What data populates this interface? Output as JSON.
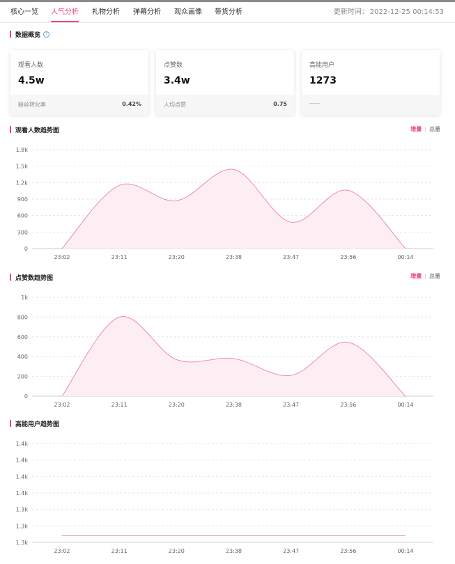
{
  "tabs": [
    {
      "label": "核心一览"
    },
    {
      "label": "人气分析",
      "active": true
    },
    {
      "label": "礼物分析"
    },
    {
      "label": "弹幕分析"
    },
    {
      "label": "观众画像"
    },
    {
      "label": "带货分析"
    }
  ],
  "update": {
    "label": "更新时间：",
    "time": "2022-12-25 00:14:53"
  },
  "overview": {
    "title": "数据概览",
    "help_icon": "question-circle-icon",
    "cards": [
      {
        "label": "观看人数",
        "value": "4.5w",
        "foot_label": "粉丝转化率",
        "foot_value": "0.42%"
      },
      {
        "label": "点赞数",
        "value": "3.4w",
        "foot_label": "人均点赞",
        "foot_value": "0.75"
      },
      {
        "label": "高能用户",
        "value": "1273",
        "foot_label": "——",
        "foot_value": ""
      }
    ]
  },
  "toggle": {
    "increment": "增量",
    "total": "总量"
  },
  "colors": {
    "accent": "#f0457a",
    "line": "#f28aa8",
    "fill": "#fdeef3",
    "grid": "#e6e6e6"
  },
  "chart_data": [
    {
      "title": "观看人数趋势图",
      "type": "area",
      "smooth": true,
      "x": [
        "23:02",
        "23:11",
        "23:20",
        "23:38",
        "23:47",
        "23:56",
        "00:14"
      ],
      "yticks": [
        "0",
        "300",
        "600",
        "900",
        "1.2k",
        "1.5k",
        "1.8k"
      ],
      "ylim": [
        0,
        1800
      ],
      "points": [
        {
          "x": "23:02",
          "y": 0
        },
        {
          "x": "23:11",
          "y": 1150
        },
        {
          "x": "23:20",
          "y": 870
        },
        {
          "x": "23:38",
          "y": 1440
        },
        {
          "x": "23:47",
          "y": 480
        },
        {
          "x": "23:56",
          "y": 1060
        },
        {
          "x": "00:14",
          "y": 0
        }
      ],
      "grid": true,
      "legend": "none"
    },
    {
      "title": "点赞数趋势图",
      "type": "area",
      "smooth": true,
      "x": [
        "23:02",
        "23:11",
        "23:20",
        "23:38",
        "23:47",
        "23:56",
        "00:14"
      ],
      "yticks": [
        "0",
        "200",
        "400",
        "600",
        "800",
        "1k"
      ],
      "ylim": [
        0,
        1000
      ],
      "points": [
        {
          "x": "23:02",
          "y": 0
        },
        {
          "x": "23:11",
          "y": 800
        },
        {
          "x": "23:20",
          "y": 370
        },
        {
          "x": "23:38",
          "y": 380
        },
        {
          "x": "23:47",
          "y": 210
        },
        {
          "x": "23:56",
          "y": 545
        },
        {
          "x": "00:14",
          "y": 0
        }
      ],
      "grid": true,
      "legend": "none"
    },
    {
      "title": "高能用户趋势图",
      "type": "line",
      "smooth": false,
      "x": [
        "23:02",
        "23:11",
        "23:20",
        "23:38",
        "23:47",
        "23:56",
        "00:14"
      ],
      "yticks": [
        "1.3k",
        "1.3k",
        "1.3k",
        "1.4k",
        "1.4k",
        "1.4k",
        "1.4k"
      ],
      "ylim": [
        0,
        6
      ],
      "points": [
        {
          "x": "23:02",
          "y": 0.4
        },
        {
          "x": "00:14",
          "y": 0.4
        }
      ],
      "grid": true,
      "legend": "none"
    }
  ]
}
